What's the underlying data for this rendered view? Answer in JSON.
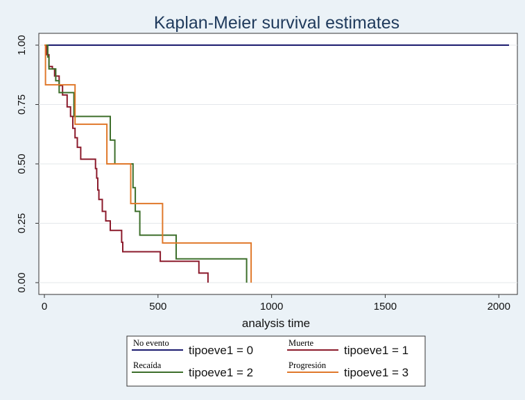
{
  "chart_data": {
    "type": "line",
    "step": true,
    "title": "Kaplan-Meier survival estimates",
    "xlabel": "analysis time",
    "ylabel": "",
    "xlim": [
      0,
      2060
    ],
    "ylim": [
      0,
      1
    ],
    "x_ticks": [
      0,
      500,
      1000,
      1500,
      2000
    ],
    "x_tick_labels": [
      "0",
      "500",
      "1000",
      "1500",
      "2000"
    ],
    "y_ticks": [
      0,
      0.25,
      0.5,
      0.75,
      1
    ],
    "y_tick_labels": [
      "0.00",
      "0.25",
      "0.50",
      "0.75",
      "1.00"
    ],
    "grid": "horizontal",
    "legend_position": "bottom",
    "series": [
      {
        "name": "tipoeve1 = 0",
        "handwritten_label": "No evento",
        "color": "#1a1a6e",
        "points": [
          [
            0,
            1.0
          ],
          [
            2045,
            1.0
          ]
        ]
      },
      {
        "name": "tipoeve1 = 1",
        "handwritten_label": "Muerte",
        "color": "#8b1a2b",
        "points": [
          [
            0,
            1.0
          ],
          [
            10,
            0.96
          ],
          [
            20,
            0.91
          ],
          [
            35,
            0.9
          ],
          [
            45,
            0.87
          ],
          [
            65,
            0.83
          ],
          [
            80,
            0.79
          ],
          [
            100,
            0.74
          ],
          [
            115,
            0.7
          ],
          [
            125,
            0.65
          ],
          [
            135,
            0.61
          ],
          [
            145,
            0.57
          ],
          [
            160,
            0.52
          ],
          [
            225,
            0.48
          ],
          [
            230,
            0.44
          ],
          [
            235,
            0.39
          ],
          [
            240,
            0.35
          ],
          [
            255,
            0.3
          ],
          [
            270,
            0.26
          ],
          [
            290,
            0.22
          ],
          [
            340,
            0.17
          ],
          [
            345,
            0.13
          ],
          [
            510,
            0.09
          ],
          [
            680,
            0.04
          ],
          [
            720,
            0.0
          ]
        ]
      },
      {
        "name": "tipoeve1 = 2",
        "handwritten_label": "Recaída",
        "color": "#3c6e2a",
        "points": [
          [
            0,
            1.0
          ],
          [
            15,
            0.95
          ],
          [
            20,
            0.9
          ],
          [
            50,
            0.85
          ],
          [
            65,
            0.8
          ],
          [
            130,
            0.7
          ],
          [
            290,
            0.6
          ],
          [
            310,
            0.5
          ],
          [
            390,
            0.4
          ],
          [
            400,
            0.3
          ],
          [
            420,
            0.2
          ],
          [
            580,
            0.1
          ],
          [
            890,
            0.0
          ]
        ]
      },
      {
        "name": "tipoeve1 = 3",
        "handwritten_label": "Progresión",
        "color": "#e0782a",
        "points": [
          [
            0,
            1.0
          ],
          [
            5,
            0.833
          ],
          [
            135,
            0.667
          ],
          [
            275,
            0.5
          ],
          [
            380,
            0.333
          ],
          [
            520,
            0.167
          ],
          [
            910,
            0.0
          ]
        ]
      }
    ]
  }
}
